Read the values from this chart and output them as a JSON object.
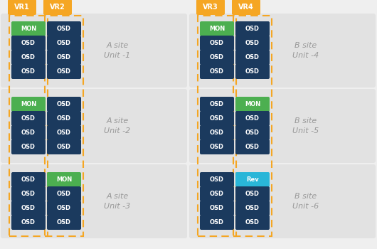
{
  "fig_width": 5.3,
  "fig_height": 3.5,
  "dpi": 100,
  "bg_color": "#efefef",
  "panel_bg": "#e2e2e2",
  "dark_blue": "#1b3a5e",
  "green": "#4caf50",
  "cyan": "#29b6d8",
  "orange": "#f5a623",
  "white": "#ffffff",
  "label_gray": "#999999",
  "vr_labels": [
    "VR1",
    "VR2",
    "VR3",
    "VR4"
  ],
  "units": [
    {
      "label": "A site\nUnit -1",
      "row": 0,
      "side": "left",
      "col1": [
        {
          "text": "MON",
          "color": "green"
        },
        {
          "text": "OSD",
          "color": "dark_blue"
        },
        {
          "text": "OSD",
          "color": "dark_blue"
        },
        {
          "text": "OSD",
          "color": "dark_blue"
        }
      ],
      "col2": [
        {
          "text": "OSD",
          "color": "dark_blue"
        },
        {
          "text": "OSD",
          "color": "dark_blue"
        },
        {
          "text": "OSD",
          "color": "dark_blue"
        },
        {
          "text": "OSD",
          "color": "dark_blue"
        }
      ]
    },
    {
      "label": "A site\nUnit -2",
      "row": 1,
      "side": "left",
      "col1": [
        {
          "text": "MON",
          "color": "green"
        },
        {
          "text": "OSD",
          "color": "dark_blue"
        },
        {
          "text": "OSD",
          "color": "dark_blue"
        },
        {
          "text": "OSD",
          "color": "dark_blue"
        }
      ],
      "col2": [
        {
          "text": "OSD",
          "color": "dark_blue"
        },
        {
          "text": "OSD",
          "color": "dark_blue"
        },
        {
          "text": "OSD",
          "color": "dark_blue"
        },
        {
          "text": "OSD",
          "color": "dark_blue"
        }
      ]
    },
    {
      "label": "A site\nUnit -3",
      "row": 2,
      "side": "left",
      "col1": [
        {
          "text": "OSD",
          "color": "dark_blue"
        },
        {
          "text": "OSD",
          "color": "dark_blue"
        },
        {
          "text": "OSD",
          "color": "dark_blue"
        },
        {
          "text": "OSD",
          "color": "dark_blue"
        }
      ],
      "col2": [
        {
          "text": "MON",
          "color": "green"
        },
        {
          "text": "OSD",
          "color": "dark_blue"
        },
        {
          "text": "OSD",
          "color": "dark_blue"
        },
        {
          "text": "OSD",
          "color": "dark_blue"
        }
      ]
    },
    {
      "label": "B site\nUnit -4",
      "row": 0,
      "side": "right",
      "col1": [
        {
          "text": "MON",
          "color": "green"
        },
        {
          "text": "OSD",
          "color": "dark_blue"
        },
        {
          "text": "OSD",
          "color": "dark_blue"
        },
        {
          "text": "OSD",
          "color": "dark_blue"
        }
      ],
      "col2": [
        {
          "text": "OSD",
          "color": "dark_blue"
        },
        {
          "text": "OSD",
          "color": "dark_blue"
        },
        {
          "text": "OSD",
          "color": "dark_blue"
        },
        {
          "text": "OSD",
          "color": "dark_blue"
        }
      ]
    },
    {
      "label": "B site\nUnit -5",
      "row": 1,
      "side": "right",
      "col1": [
        {
          "text": "OSD",
          "color": "dark_blue"
        },
        {
          "text": "OSD",
          "color": "dark_blue"
        },
        {
          "text": "OSD",
          "color": "dark_blue"
        },
        {
          "text": "OSD",
          "color": "dark_blue"
        }
      ],
      "col2": [
        {
          "text": "MON",
          "color": "green"
        },
        {
          "text": "OSD",
          "color": "dark_blue"
        },
        {
          "text": "OSD",
          "color": "dark_blue"
        },
        {
          "text": "OSD",
          "color": "dark_blue"
        }
      ]
    },
    {
      "label": "B site\nUnit -6",
      "row": 2,
      "side": "right",
      "col1": [
        {
          "text": "OSD",
          "color": "dark_blue"
        },
        {
          "text": "OSD",
          "color": "dark_blue"
        },
        {
          "text": "OSD",
          "color": "dark_blue"
        },
        {
          "text": "OSD",
          "color": "dark_blue"
        }
      ],
      "col2": [
        {
          "text": "Rev",
          "color": "cyan"
        },
        {
          "text": "OSD",
          "color": "dark_blue"
        },
        {
          "text": "OSD",
          "color": "dark_blue"
        },
        {
          "text": "OSD",
          "color": "dark_blue"
        }
      ]
    }
  ]
}
